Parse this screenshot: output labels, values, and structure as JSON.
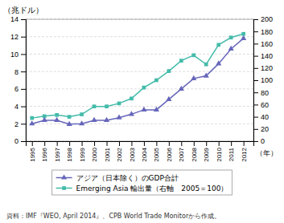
{
  "chart_data": {
    "type": "line",
    "x": [
      1995,
      1996,
      1997,
      1998,
      1999,
      2000,
      2001,
      2002,
      2003,
      2004,
      2005,
      2006,
      2007,
      2008,
      2009,
      2010,
      2011,
      2012
    ],
    "series": [
      {
        "name": "アジア（日本除く）のGDP合計",
        "color": "#6666bb",
        "marker": "triangle",
        "axis": "y",
        "values": [
          2.0,
          2.4,
          2.4,
          1.95,
          2.0,
          2.4,
          2.4,
          2.7,
          3.1,
          3.6,
          3.6,
          4.8,
          6.0,
          7.2,
          7.5,
          8.9,
          10.6,
          11.8
        ]
      },
      {
        "name": "Emerging Asia 輸出量（右軸　2005＝100）",
        "color": "#44bbaa",
        "marker": "square",
        "axis": "y2",
        "values": [
          38,
          41,
          43,
          40,
          44,
          57,
          57,
          62,
          70,
          88,
          100,
          115,
          132,
          141,
          126,
          158,
          170,
          176
        ]
      }
    ],
    "xlim": [
      1994.5,
      2012.8
    ],
    "xticks": [
      1995,
      1996,
      1997,
      1998,
      1999,
      2000,
      2001,
      2002,
      2003,
      2004,
      2005,
      2006,
      2007,
      2008,
      2009,
      2010,
      2011,
      2012
    ],
    "ylim": [
      0,
      14
    ],
    "yticks": [
      0,
      2,
      4,
      6,
      8,
      10,
      12,
      14
    ],
    "y2lim": [
      0,
      200
    ],
    "y2ticks": [
      0,
      20,
      40,
      60,
      80,
      100,
      120,
      140,
      160,
      180,
      200
    ],
    "ylabel": "（兆ドル）",
    "xlabel": "（年）",
    "annotations": [
      "資料：IMF『WEO, April 2014』、CPB World Trade Monitorから作成。"
    ],
    "grid": true,
    "legend": "bottom"
  }
}
